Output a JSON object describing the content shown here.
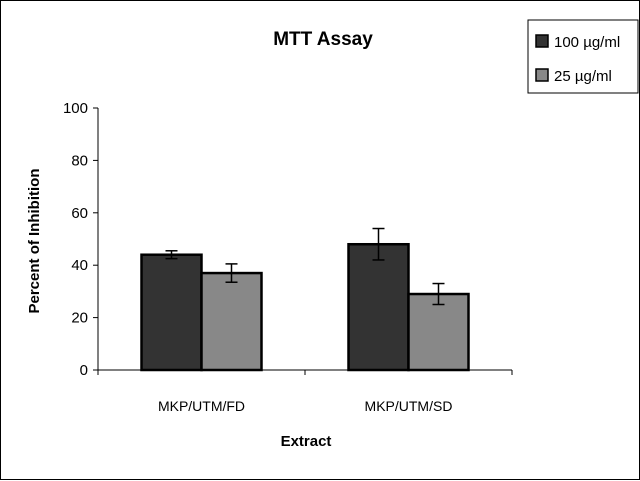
{
  "chart_data": {
    "type": "bar",
    "title": "MTT Assay",
    "xlabel": "Extract",
    "ylabel": "Percent of Inhibition",
    "categories": [
      "MKP/UTM/FD",
      "MKP/UTM/SD"
    ],
    "ylim": [
      0,
      100
    ],
    "yticks": [
      0,
      20,
      40,
      60,
      80,
      100
    ],
    "grid": false,
    "legend_position": "top-right",
    "series": [
      {
        "name": "100 µg/ml",
        "values": [
          44,
          48
        ],
        "errors": [
          1.5,
          6
        ],
        "color": "#333333"
      },
      {
        "name": "25 µg/ml",
        "values": [
          37,
          29
        ],
        "errors": [
          3.5,
          4
        ],
        "color": "#888888"
      }
    ]
  }
}
